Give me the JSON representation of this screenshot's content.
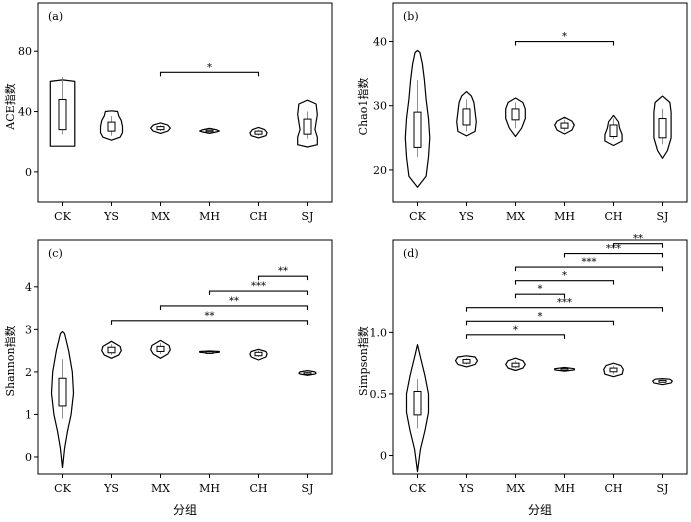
{
  "chart_data": [
    {
      "type": "violin",
      "panel_label": "(a)",
      "ylabel": "ACE指数",
      "xlabel": "",
      "categories": [
        "CK",
        "YS",
        "MX",
        "MH",
        "CH",
        "SJ"
      ],
      "yticks": [
        0,
        40,
        80
      ],
      "ylim": [
        -20,
        112
      ],
      "groups": [
        {
          "name": "CK",
          "vmin": 17,
          "vmax": 60,
          "q1": 28,
          "median": 38,
          "q3": 48,
          "whisker": [
            25,
            63
          ],
          "profile": [
            [
              17,
              0.5
            ],
            [
              20,
              0.5
            ],
            [
              28,
              0.5
            ],
            [
              40,
              0.5
            ],
            [
              50,
              0.5
            ],
            [
              60,
              0.5
            ],
            [
              61,
              0
            ]
          ]
        },
        {
          "name": "YS",
          "vmin": 22,
          "vmax": 39,
          "q1": 27,
          "median": 30,
          "q3": 33,
          "whisker": [
            24,
            37
          ],
          "profile": [
            [
              21,
              0
            ],
            [
              23,
              0.35
            ],
            [
              26,
              0.45
            ],
            [
              30,
              0.45
            ],
            [
              34,
              0.4
            ],
            [
              37,
              0.3
            ],
            [
              40,
              0.25
            ],
            [
              40.5,
              0
            ]
          ]
        },
        {
          "name": "MX",
          "vmin": 26,
          "vmax": 32,
          "q1": 28,
          "median": 29,
          "q3": 30,
          "whisker": [
            27,
            31
          ],
          "profile": [
            [
              25.5,
              0
            ],
            [
              27,
              0.3
            ],
            [
              29,
              0.4
            ],
            [
              31,
              0.3
            ],
            [
              32.5,
              0
            ]
          ]
        },
        {
          "name": "MH",
          "vmin": 26,
          "vmax": 28.5,
          "q1": 26.8,
          "median": 27,
          "q3": 27.6,
          "whisker": [
            26.5,
            28
          ],
          "profile": [
            [
              25.5,
              0
            ],
            [
              26.5,
              0.3
            ],
            [
              27,
              0.4
            ],
            [
              27.8,
              0.3
            ],
            [
              28.8,
              0
            ]
          ]
        },
        {
          "name": "CH",
          "vmin": 23,
          "vmax": 29,
          "q1": 25,
          "median": 26,
          "q3": 27,
          "whisker": [
            24,
            28
          ],
          "profile": [
            [
              22.5,
              0
            ],
            [
              24,
              0.3
            ],
            [
              26,
              0.35
            ],
            [
              28,
              0.25
            ],
            [
              29.5,
              0
            ]
          ]
        },
        {
          "name": "SJ",
          "vmin": 17,
          "vmax": 47,
          "q1": 25,
          "median": 31,
          "q3": 35,
          "whisker": [
            22,
            40
          ],
          "profile": [
            [
              16.5,
              0
            ],
            [
              18,
              0.4
            ],
            [
              23,
              0.4
            ],
            [
              28,
              0.3
            ],
            [
              33,
              0.35
            ],
            [
              38,
              0.4
            ],
            [
              45,
              0.35
            ],
            [
              47.5,
              0
            ]
          ]
        }
      ],
      "significance": [
        {
          "from": "MX",
          "to": "CH",
          "label": "*",
          "y": 66
        }
      ]
    },
    {
      "type": "violin",
      "panel_label": "(b)",
      "ylabel": "Chao1指数",
      "xlabel": "",
      "categories": [
        "CK",
        "YS",
        "MX",
        "MH",
        "CH",
        "SJ"
      ],
      "yticks": [
        20,
        30,
        40
      ],
      "ylim": [
        15,
        46
      ],
      "groups": [
        {
          "name": "CK",
          "vmin": 17.5,
          "vmax": 38.5,
          "q1": 23.5,
          "median": 26,
          "q3": 29,
          "whisker": [
            22,
            34
          ],
          "profile": [
            [
              17.3,
              0
            ],
            [
              19,
              0.35
            ],
            [
              22,
              0.45
            ],
            [
              25,
              0.5
            ],
            [
              28,
              0.45
            ],
            [
              31,
              0.35
            ],
            [
              34,
              0.28
            ],
            [
              36.5,
              0.2
            ],
            [
              38.3,
              0.1
            ],
            [
              38.6,
              0
            ]
          ]
        },
        {
          "name": "YS",
          "vmin": 25.5,
          "vmax": 32,
          "q1": 27,
          "median": 28,
          "q3": 29.5,
          "whisker": [
            26,
            31
          ],
          "profile": [
            [
              25.3,
              0
            ],
            [
              26,
              0.35
            ],
            [
              27.5,
              0.4
            ],
            [
              29,
              0.35
            ],
            [
              30.5,
              0.3
            ],
            [
              31.5,
              0.2
            ],
            [
              32.2,
              0
            ]
          ]
        },
        {
          "name": "MX",
          "vmin": 25.5,
          "vmax": 31,
          "q1": 27.8,
          "median": 28.5,
          "q3": 29.5,
          "whisker": [
            26.5,
            30.5
          ],
          "profile": [
            [
              25.2,
              0
            ],
            [
              26.5,
              0.25
            ],
            [
              28,
              0.4
            ],
            [
              29.5,
              0.4
            ],
            [
              30.5,
              0.3
            ],
            [
              31.2,
              0
            ]
          ]
        },
        {
          "name": "MH",
          "vmin": 25.8,
          "vmax": 28,
          "q1": 26.5,
          "median": 27,
          "q3": 27.3,
          "whisker": [
            26,
            27.8
          ],
          "profile": [
            [
              25.6,
              0
            ],
            [
              26.2,
              0.3
            ],
            [
              27,
              0.4
            ],
            [
              27.6,
              0.3
            ],
            [
              28.2,
              0
            ]
          ]
        },
        {
          "name": "CH",
          "vmin": 24,
          "vmax": 28.5,
          "q1": 25.2,
          "median": 26,
          "q3": 27,
          "whisker": [
            24.8,
            28
          ],
          "profile": [
            [
              23.8,
              0
            ],
            [
              24.5,
              0.35
            ],
            [
              25.5,
              0.35
            ],
            [
              26.5,
              0.25
            ],
            [
              27.5,
              0.2
            ],
            [
              28.5,
              0
            ]
          ]
        },
        {
          "name": "SJ",
          "vmin": 22,
          "vmax": 31.5,
          "q1": 25,
          "median": 26.5,
          "q3": 28,
          "whisker": [
            24,
            29.5
          ],
          "profile": [
            [
              21.8,
              0
            ],
            [
              23,
              0.2
            ],
            [
              25,
              0.35
            ],
            [
              27,
              0.35
            ],
            [
              29,
              0.35
            ],
            [
              30.5,
              0.3
            ],
            [
              31.5,
              0
            ]
          ]
        }
      ],
      "significance": [
        {
          "from": "MX",
          "to": "CH",
          "label": "*",
          "y": 40
        }
      ]
    },
    {
      "type": "violin",
      "panel_label": "(c)",
      "ylabel": "Shannon指数",
      "xlabel": "分组",
      "categories": [
        "CK",
        "YS",
        "MX",
        "MH",
        "CH",
        "SJ"
      ],
      "yticks": [
        0,
        1,
        2,
        3,
        4
      ],
      "ylim": [
        -0.4,
        5.1
      ],
      "groups": [
        {
          "name": "CK",
          "vmin": -0.2,
          "vmax": 2.95,
          "q1": 1.2,
          "median": 1.55,
          "q3": 1.85,
          "whisker": [
            0.9,
            2.3
          ],
          "profile": [
            [
              -0.25,
              0
            ],
            [
              0.2,
              0.08
            ],
            [
              0.6,
              0.2
            ],
            [
              1.0,
              0.35
            ],
            [
              1.5,
              0.45
            ],
            [
              2.0,
              0.4
            ],
            [
              2.5,
              0.25
            ],
            [
              2.9,
              0.08
            ],
            [
              2.95,
              0
            ]
          ]
        },
        {
          "name": "YS",
          "vmin": 2.35,
          "vmax": 2.7,
          "q1": 2.45,
          "median": 2.52,
          "q3": 2.58,
          "whisker": [
            2.4,
            2.65
          ],
          "profile": [
            [
              2.32,
              0
            ],
            [
              2.4,
              0.3
            ],
            [
              2.5,
              0.4
            ],
            [
              2.6,
              0.35
            ],
            [
              2.72,
              0
            ]
          ]
        },
        {
          "name": "MX",
          "vmin": 2.35,
          "vmax": 2.72,
          "q1": 2.48,
          "median": 2.55,
          "q3": 2.6,
          "whisker": [
            2.42,
            2.68
          ],
          "profile": [
            [
              2.32,
              0
            ],
            [
              2.42,
              0.3
            ],
            [
              2.52,
              0.4
            ],
            [
              2.62,
              0.35
            ],
            [
              2.74,
              0
            ]
          ]
        },
        {
          "name": "MH",
          "vmin": 2.45,
          "vmax": 2.48,
          "q1": 2.46,
          "median": 2.47,
          "q3": 2.47,
          "whisker": [
            2.46,
            2.48
          ],
          "profile": [
            [
              2.44,
              0
            ],
            [
              2.46,
              0.4
            ],
            [
              2.48,
              0.4
            ],
            [
              2.49,
              0
            ]
          ]
        },
        {
          "name": "CH",
          "vmin": 2.3,
          "vmax": 2.52,
          "q1": 2.38,
          "median": 2.42,
          "q3": 2.46,
          "whisker": [
            2.35,
            2.5
          ],
          "profile": [
            [
              2.28,
              0
            ],
            [
              2.35,
              0.3
            ],
            [
              2.42,
              0.35
            ],
            [
              2.48,
              0.3
            ],
            [
              2.53,
              0
            ]
          ]
        },
        {
          "name": "SJ",
          "vmin": 1.93,
          "vmax": 2.02,
          "q1": 1.96,
          "median": 1.97,
          "q3": 1.98,
          "whisker": [
            1.95,
            2.0
          ],
          "profile": [
            [
              1.92,
              0
            ],
            [
              1.95,
              0.3
            ],
            [
              1.97,
              0.35
            ],
            [
              2.0,
              0.3
            ],
            [
              2.03,
              0
            ]
          ]
        }
      ],
      "significance": [
        {
          "from": "YS",
          "to": "SJ",
          "label": "**",
          "y": 3.2
        },
        {
          "from": "MX",
          "to": "SJ",
          "label": "**",
          "y": 3.55
        },
        {
          "from": "MH",
          "to": "SJ",
          "label": "***",
          "y": 3.9
        },
        {
          "from": "CH",
          "to": "SJ",
          "label": "**",
          "y": 4.25
        }
      ]
    },
    {
      "type": "violin",
      "panel_label": "(d)",
      "ylabel": "Simpson指数",
      "xlabel": "分组",
      "categories": [
        "CK",
        "YS",
        "MX",
        "MH",
        "CH",
        "SJ"
      ],
      "yticks": [
        0,
        0.5,
        1.0
      ],
      "ytick_labels": [
        "0",
        "0.5",
        "1.0"
      ],
      "ylim": [
        -0.15,
        1.75
      ],
      "groups": [
        {
          "name": "CK",
          "vmin": -0.12,
          "vmax": 0.9,
          "q1": 0.33,
          "median": 0.43,
          "q3": 0.52,
          "whisker": [
            0.22,
            0.62
          ],
          "profile": [
            [
              -0.13,
              0
            ],
            [
              0.05,
              0.12
            ],
            [
              0.2,
              0.3
            ],
            [
              0.35,
              0.45
            ],
            [
              0.5,
              0.45
            ],
            [
              0.65,
              0.3
            ],
            [
              0.8,
              0.12
            ],
            [
              0.9,
              0
            ]
          ]
        },
        {
          "name": "YS",
          "vmin": 0.73,
          "vmax": 0.8,
          "q1": 0.75,
          "median": 0.77,
          "q3": 0.78,
          "whisker": [
            0.74,
            0.79
          ],
          "profile": [
            [
              0.72,
              0
            ],
            [
              0.74,
              0.35
            ],
            [
              0.77,
              0.45
            ],
            [
              0.8,
              0.35
            ],
            [
              0.81,
              0
            ]
          ]
        },
        {
          "name": "MX",
          "vmin": 0.7,
          "vmax": 0.78,
          "q1": 0.72,
          "median": 0.74,
          "q3": 0.75,
          "whisker": [
            0.71,
            0.77
          ],
          "profile": [
            [
              0.69,
              0
            ],
            [
              0.71,
              0.3
            ],
            [
              0.74,
              0.4
            ],
            [
              0.77,
              0.3
            ],
            [
              0.79,
              0
            ]
          ]
        },
        {
          "name": "MH",
          "vmin": 0.69,
          "vmax": 0.71,
          "q1": 0.695,
          "median": 0.7,
          "q3": 0.705,
          "whisker": [
            0.69,
            0.71
          ],
          "profile": [
            [
              0.685,
              0
            ],
            [
              0.695,
              0.4
            ],
            [
              0.705,
              0.4
            ],
            [
              0.715,
              0
            ]
          ]
        },
        {
          "name": "CH",
          "vmin": 0.65,
          "vmax": 0.74,
          "q1": 0.68,
          "median": 0.7,
          "q3": 0.71,
          "whisker": [
            0.66,
            0.73
          ],
          "profile": [
            [
              0.64,
              0
            ],
            [
              0.66,
              0.35
            ],
            [
              0.7,
              0.4
            ],
            [
              0.73,
              0.3
            ],
            [
              0.75,
              0
            ]
          ]
        },
        {
          "name": "SJ",
          "vmin": 0.58,
          "vmax": 0.62,
          "q1": 0.595,
          "median": 0.6,
          "q3": 0.61,
          "whisker": [
            0.59,
            0.615
          ],
          "profile": [
            [
              0.575,
              0
            ],
            [
              0.59,
              0.35
            ],
            [
              0.605,
              0.4
            ],
            [
              0.62,
              0.3
            ],
            [
              0.625,
              0
            ]
          ]
        }
      ],
      "significance": [
        {
          "from": "YS",
          "to": "MH",
          "label": "*",
          "y": 0.98
        },
        {
          "from": "YS",
          "to": "CH",
          "label": "*",
          "y": 1.09
        },
        {
          "from": "YS",
          "to": "SJ",
          "label": "***",
          "y": 1.2
        },
        {
          "from": "MX",
          "to": "MH",
          "label": "*",
          "y": 1.31
        },
        {
          "from": "MX",
          "to": "CH",
          "label": "*",
          "y": 1.42
        },
        {
          "from": "MX",
          "to": "SJ",
          "label": "***",
          "y": 1.53
        },
        {
          "from": "MH",
          "to": "SJ",
          "label": "***",
          "y": 1.64
        },
        {
          "from": "CH",
          "to": "SJ",
          "label": "**",
          "y": 1.72
        }
      ]
    }
  ]
}
